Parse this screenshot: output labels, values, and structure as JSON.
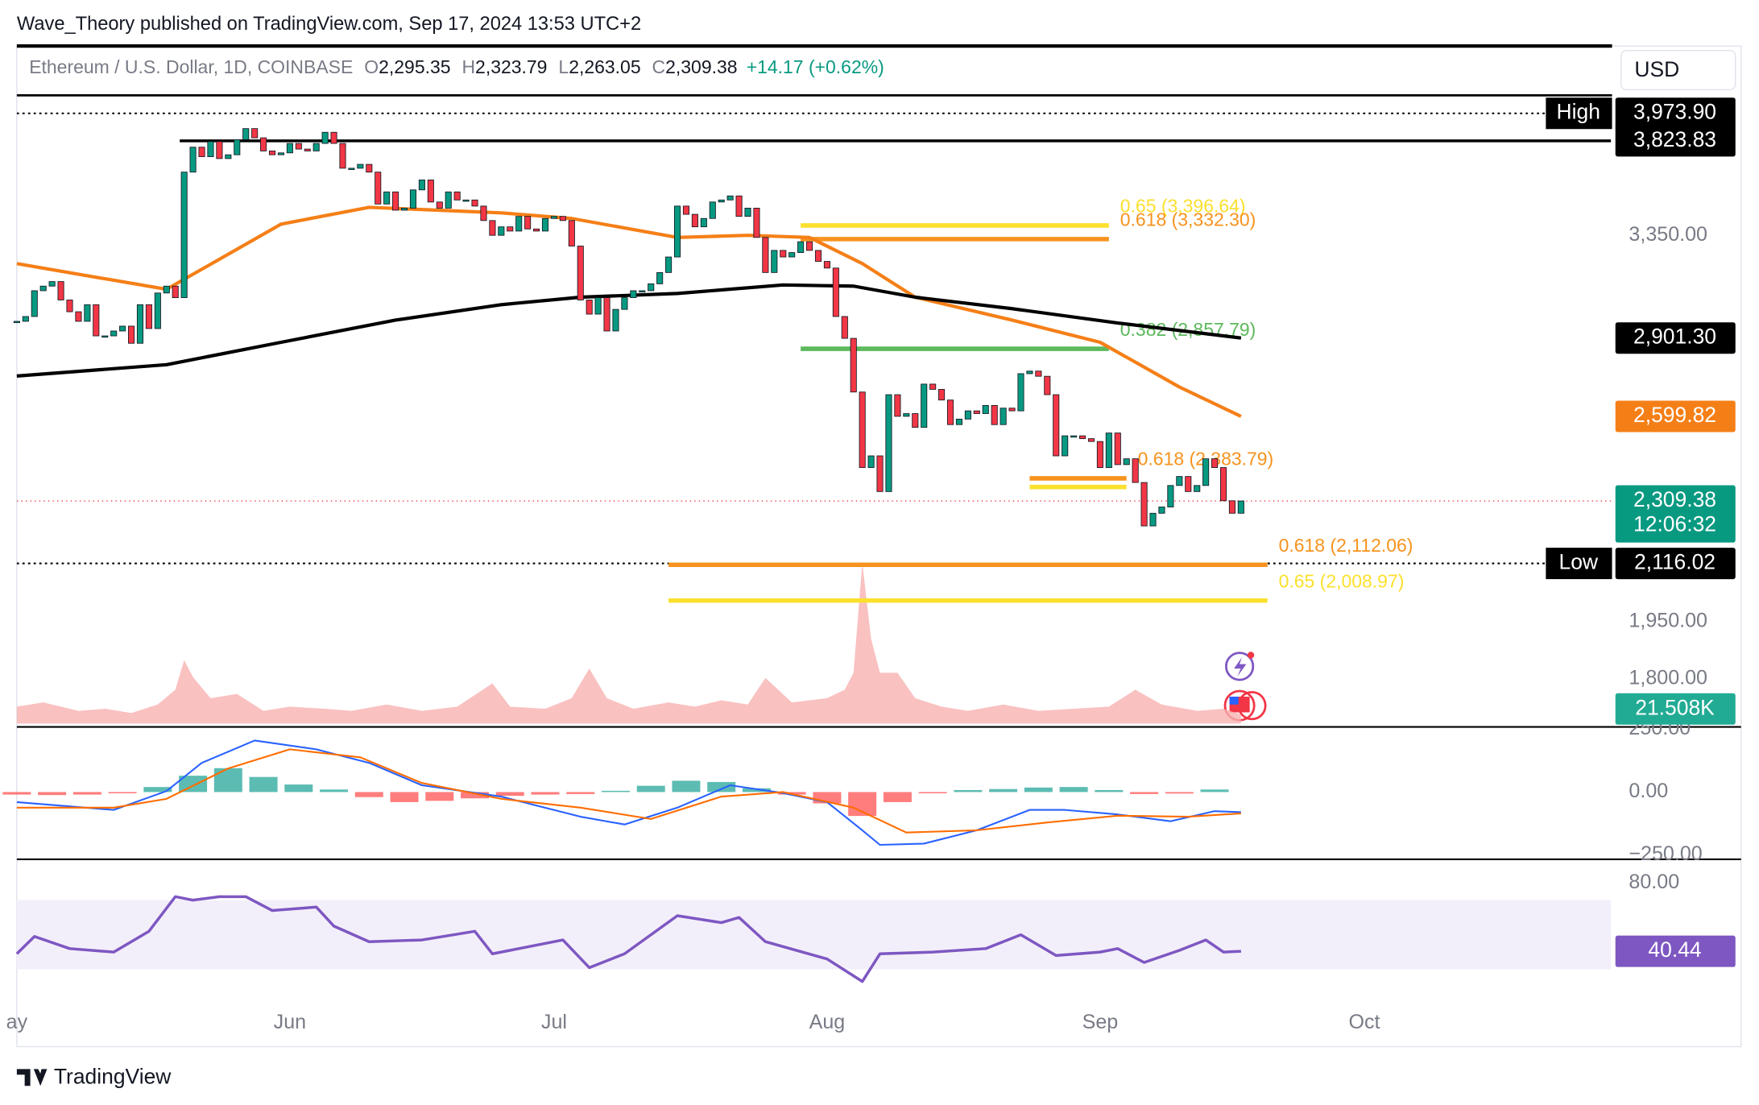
{
  "header": {
    "publisher": "Wave_Theory published on TradingView.com, Sep 17, 2024 13:53 UTC+2"
  },
  "footer": {
    "brand": "TradingView"
  },
  "chart_data": {
    "type": "candlestick",
    "symbol": "Ethereum / U.S. Dollar, 1D, COINBASE",
    "currency": "USD",
    "ohlc": [
      {
        "name": "O",
        "value": 2295.35,
        "label": "2,295.35"
      },
      {
        "name": "H",
        "value": 2323.79,
        "label": "2,323.79"
      },
      {
        "name": "L",
        "value": 2263.05,
        "label": "2,263.05"
      },
      {
        "name": "C",
        "value": 2309.38,
        "label": "2,309.38"
      }
    ],
    "change": {
      "value": 14.17,
      "label": "+14.17 (+0.62%)"
    },
    "xlim": [
      0,
      181
    ],
    "xticks": [
      {
        "value": 0,
        "label": "ay"
      },
      {
        "value": 31,
        "label": "Jun"
      },
      {
        "value": 61,
        "label": "Jul"
      },
      {
        "value": 92,
        "label": "Aug"
      },
      {
        "value": 123,
        "label": "Sep"
      },
      {
        "value": 153,
        "label": "Oct"
      }
    ],
    "ylim": [
      1683,
      4360
    ],
    "log_scale": true,
    "yticks": [
      {
        "value": 3350,
        "label": "3,350.00"
      },
      {
        "value": 1950,
        "label": "1,950.00"
      },
      {
        "value": 1800,
        "label": "1,800.00"
      }
    ],
    "up_color": "#089981",
    "down_color": "#f23645",
    "close": [
      2970,
      2990,
      3100,
      3120,
      3140,
      3060,
      3010,
      2970,
      3040,
      2910,
      2910,
      2930,
      2950,
      2880,
      3040,
      2940,
      3090,
      3120,
      3070,
      3660,
      3790,
      3740,
      3820,
      3730,
      3750,
      3830,
      3890,
      3840,
      3770,
      3750,
      3760,
      3810,
      3780,
      3770,
      3810,
      3870,
      3810,
      3680,
      3680,
      3700,
      3660,
      3500,
      3560,
      3470,
      3480,
      3570,
      3620,
      3510,
      3480,
      3560,
      3520,
      3520,
      3490,
      3420,
      3350,
      3390,
      3370,
      3440,
      3380,
      3370,
      3430,
      3440,
      3420,
      3300,
      3060,
      3000,
      3070,
      2930,
      3020,
      3070,
      3100,
      3100,
      3130,
      3180,
      3250,
      3490,
      3450,
      3390,
      3430,
      3510,
      3520,
      3540,
      3440,
      3480,
      3340,
      3180,
      3280,
      3250,
      3270,
      3320,
      3280,
      3230,
      3200,
      2990,
      2900,
      2690,
      2420,
      2460,
      2340,
      2680,
      2600,
      2610,
      2560,
      2720,
      2700,
      2660,
      2570,
      2590,
      2620,
      2610,
      2640,
      2570,
      2630,
      2620,
      2760,
      2770,
      2750,
      2680,
      2460,
      2530,
      2530,
      2520,
      2510,
      2420,
      2540,
      2430,
      2450,
      2370,
      2230,
      2270,
      2290,
      2360,
      2390,
      2340,
      2360,
      2450,
      2420,
      2310,
      2270,
      2309.38
    ],
    "last_price": {
      "value": 2309.38,
      "label": "2,309.38",
      "countdown": "12:06:32",
      "color": "#089981"
    },
    "moving_averages": [
      {
        "color": "#f57f17",
        "x": [
          0,
          17,
          30,
          40,
          55,
          63,
          75,
          83,
          90,
          96,
          102,
          113,
          123,
          132,
          139
        ],
        "values": [
          3220,
          3106,
          3403,
          3484,
          3457,
          3430,
          3340,
          3350,
          3340,
          3220,
          3072,
          2975,
          2884,
          2709,
          2599.82
        ],
        "last_label": "2,599.82"
      },
      {
        "color": "#000000",
        "x": [
          0,
          17,
          30,
          43,
          55,
          64,
          75,
          87,
          95,
          102,
          113,
          125,
          139
        ],
        "values": [
          2751,
          2795,
          2884,
          2975,
          3040,
          3072,
          3088,
          3125,
          3120,
          3072,
          3023,
          2963,
          2901.3
        ],
        "last_label": "2,901.30"
      }
    ],
    "levels": [
      {
        "name": "High",
        "value": 3973.9,
        "label": "3,973.90",
        "dashed": true,
        "span": [
          0,
          181
        ]
      },
      {
        "value": 3823.83,
        "label": "3,823.83",
        "dashed": false,
        "span": [
          18.5,
          181
        ]
      },
      {
        "name": "Low",
        "value": 2116.02,
        "label": "2,116.02",
        "dashed": true,
        "span": [
          0,
          181
        ]
      }
    ],
    "fibs": [
      {
        "label": "0.65 (3,396.64)",
        "value": 3396.64,
        "color": "#fbe02e",
        "span": [
          89,
          124
        ]
      },
      {
        "label": "0.618 (3,332.30)",
        "value": 3332.3,
        "color": "#f7931e",
        "span": [
          89,
          124
        ]
      },
      {
        "label": "0.382 (2,857.79)",
        "value": 2857.79,
        "color": "#5cb85c",
        "span": [
          89,
          124
        ]
      },
      {
        "label": "0.618 (2,383.79)",
        "value": 2383.79,
        "color": "#f7931e",
        "span": [
          115,
          126
        ]
      },
      {
        "value": 2355,
        "color": "#fbe02e",
        "span": [
          115,
          126
        ]
      },
      {
        "label": "0.618 (2,112.06)",
        "value": 2112.06,
        "color": "#f7931e",
        "span": [
          74,
          142
        ]
      },
      {
        "label": "0.65 (2,008.97)",
        "value": 2008.97,
        "color": "#fbe02e",
        "span": [
          74,
          142
        ]
      }
    ],
    "volume": {
      "ylim": [
        0,
        1600
      ],
      "color": "#f7b2b0",
      "x": [
        0,
        3,
        7,
        10,
        13,
        16,
        18,
        19,
        20,
        22,
        25,
        28,
        31,
        35,
        38,
        42,
        46,
        50,
        54,
        56,
        60,
        63,
        65,
        67,
        70,
        74,
        77,
        80,
        83,
        85,
        88,
        92,
        94,
        95,
        96,
        97,
        98,
        100,
        102,
        105,
        108,
        112,
        116,
        120,
        124,
        127,
        130,
        134,
        137,
        139
      ],
      "values": [
        40,
        50,
        30,
        35,
        25,
        45,
        80,
        150,
        110,
        60,
        70,
        30,
        40,
        35,
        30,
        45,
        30,
        40,
        95,
        40,
        35,
        60,
        130,
        60,
        35,
        50,
        40,
        55,
        45,
        108,
        50,
        60,
        80,
        120,
        380,
        200,
        120,
        120,
        60,
        40,
        30,
        45,
        30,
        35,
        40,
        80,
        45,
        30,
        35,
        21.508
      ],
      "last_label": "21.508K",
      "tag_color": "#22ab94"
    },
    "macd": {
      "ylim": [
        -263,
        250
      ],
      "yticks": [
        {
          "value": 250,
          "label": "250.00"
        },
        {
          "value": 0,
          "label": "0.00"
        },
        {
          "value": -250,
          "label": "−250.00"
        }
      ],
      "macd": {
        "color": "#2962ff",
        "x": [
          0,
          11,
          17,
          21,
          27,
          34,
          40,
          46,
          55,
          64,
          69,
          75,
          81,
          87,
          92,
          96,
          98,
          103,
          109,
          115,
          119,
          125,
          131,
          136,
          139
        ],
        "values": [
          -40,
          -71,
          4,
          116,
          205,
          170,
          116,
          27,
          -18,
          -98,
          -129,
          -62,
          27,
          -4,
          -40,
          -152,
          -210,
          -205,
          -152,
          -71,
          -71,
          -89,
          -116,
          -76,
          -80
        ]
      },
      "signal": {
        "color": "#ff6d00",
        "x": [
          0,
          11,
          17,
          24,
          31,
          39,
          46,
          55,
          64,
          72,
          80,
          87,
          95,
          101,
          109,
          117,
          125,
          133,
          139
        ],
        "values": [
          -62,
          -62,
          -27,
          94,
          170,
          138,
          36,
          -27,
          -62,
          -107,
          -18,
          0,
          -62,
          -161,
          -152,
          -121,
          -94,
          -98,
          -85
        ]
      },
      "histogram": {
        "up_color": "#26a69a",
        "down_color": "#ff5252",
        "x": [
          0,
          4,
          8,
          12,
          16,
          20,
          24,
          28,
          32,
          36,
          40,
          44,
          48,
          52,
          56,
          60,
          64,
          68,
          72,
          76,
          80,
          84,
          88,
          92,
          96,
          100,
          104,
          108,
          112,
          116,
          120,
          124,
          128,
          132,
          136
        ],
        "values": [
          -10,
          -12,
          -10,
          -5,
          20,
          65,
          95,
          60,
          30,
          10,
          -20,
          -40,
          -35,
          -25,
          -15,
          -10,
          -8,
          5,
          25,
          45,
          40,
          15,
          -10,
          -45,
          -95,
          -40,
          -5,
          8,
          12,
          18,
          20,
          8,
          -8,
          -6,
          10
        ]
      }
    },
    "rsi": {
      "ylim": [
        3.5,
        91
      ],
      "yticks": [
        {
          "value": 80,
          "label": "80.00"
        }
      ],
      "band": [
        30,
        70
      ],
      "color": "#7e57c2",
      "x": [
        0,
        2,
        6,
        11,
        15,
        18,
        20,
        23,
        26,
        29,
        34,
        36,
        40,
        46,
        52,
        54,
        62,
        65,
        69,
        75,
        80,
        82,
        85,
        92,
        96,
        98,
        104,
        110,
        114,
        118,
        123,
        125,
        128,
        132,
        135,
        137,
        139
      ],
      "values": [
        39,
        49,
        42,
        40,
        52,
        72,
        70,
        72,
        72,
        64,
        66,
        55,
        46,
        47,
        52,
        39,
        47,
        31,
        39,
        61,
        57,
        60,
        46,
        36,
        23,
        39,
        40,
        42,
        50,
        38,
        40,
        42,
        34,
        41,
        47,
        40,
        40.44
      ],
      "last_label": "40.44"
    }
  }
}
